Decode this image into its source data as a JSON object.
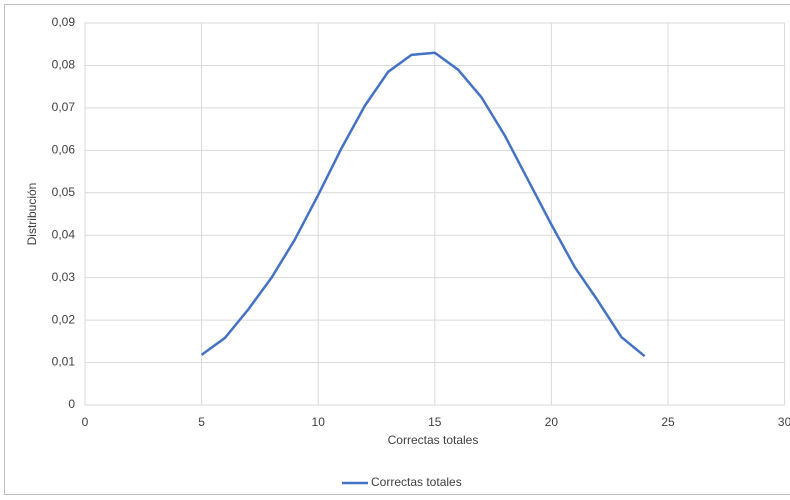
{
  "chart_data": {
    "type": "line",
    "x_label": "Correctas totales",
    "y_label": "Distribución",
    "x": [
      5,
      6,
      7,
      8,
      9,
      10,
      11,
      12,
      13,
      14,
      15,
      16,
      17,
      18,
      19,
      20,
      21,
      22,
      23,
      24
    ],
    "series": [
      {
        "name": "Correctas totales",
        "color": "#4472c4",
        "values": [
          0.0118,
          0.0158,
          0.0225,
          0.03,
          0.039,
          0.0495,
          0.0605,
          0.0705,
          0.0785,
          0.0825,
          0.083,
          0.079,
          0.0725,
          0.0635,
          0.053,
          0.0425,
          0.0325,
          0.0245,
          0.016,
          0.0115
        ]
      }
    ],
    "xlim": [
      0,
      30
    ],
    "xticks": [
      0,
      5,
      10,
      15,
      20,
      25,
      30
    ],
    "ylim": [
      0,
      0.09
    ],
    "yticks": [
      0,
      {
        "value": 0.01,
        "label": "0,01"
      },
      {
        "value": 0.02,
        "label": "0,02"
      },
      {
        "value": 0.03,
        "label": "0,03"
      },
      {
        "value": 0.04,
        "label": "0,04"
      },
      {
        "value": 0.05,
        "label": "0,05"
      },
      {
        "value": 0.06,
        "label": "0,06"
      },
      {
        "value": 0.07,
        "label": "0,07"
      },
      {
        "value": 0.08,
        "label": "0,08"
      },
      {
        "value": 0.09,
        "label": "0,09"
      }
    ],
    "grid": true,
    "legend": "bottom"
  }
}
